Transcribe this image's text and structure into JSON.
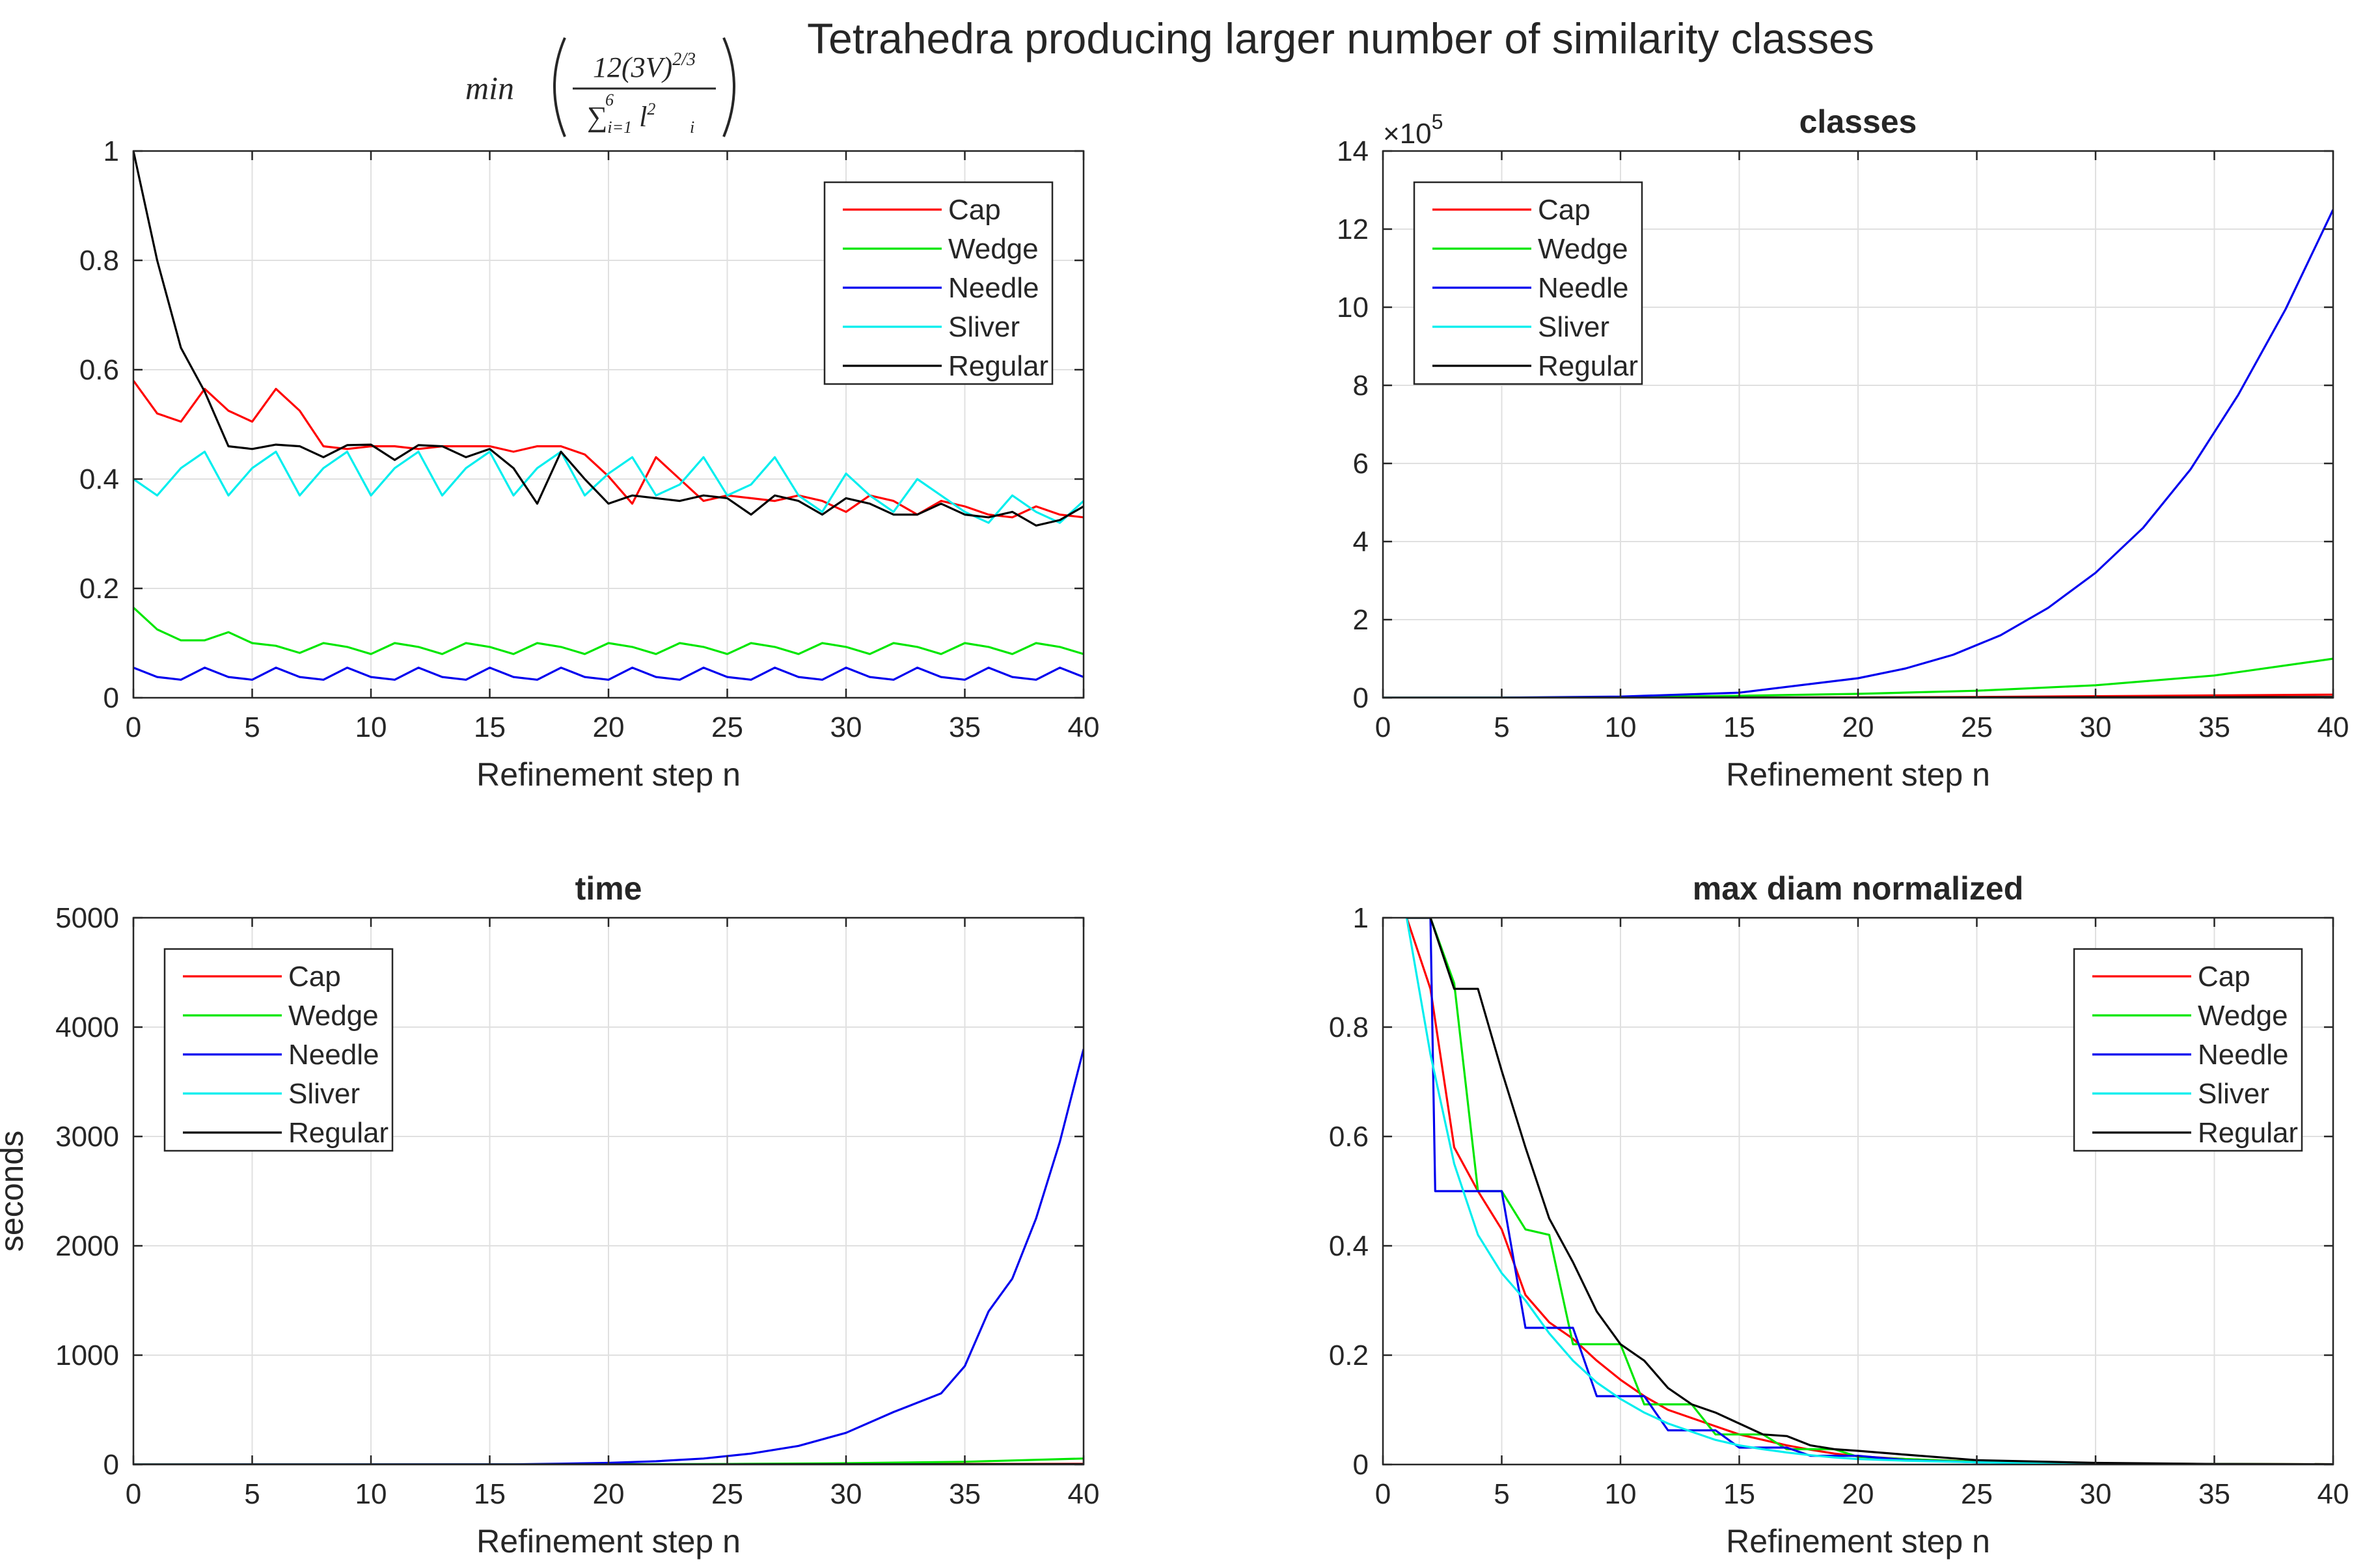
{
  "figure_title": "Tetrahedra producing larger number of similarity classes",
  "colors": {
    "Cap": "#ff0000",
    "Wedge": "#00e600",
    "Needle": "#0000ee",
    "Sliver": "#00eeee",
    "Regular": "#000000",
    "grid": "#e0e0e0",
    "axis": "#262626"
  },
  "chart_data": [
    {
      "id": "quality",
      "type": "line",
      "title": "",
      "formula": {
        "prefix": "min",
        "numerator": "12(3V)",
        "numerator_exp": "2/3",
        "sum": "∑",
        "sum_limits_sub": "i=1",
        "sum_limits_sup": "6",
        "term": "l",
        "term_sub": "i",
        "term_sup": "2"
      },
      "xlabel": "Refinement step n",
      "ylabel": "",
      "xlim": [
        0,
        40
      ],
      "ylim": [
        0,
        1
      ],
      "xticks": [
        0,
        5,
        10,
        15,
        20,
        25,
        30,
        35,
        40
      ],
      "yticks": [
        0,
        0.2,
        0.4,
        0.6,
        0.8,
        1
      ],
      "ytick_labels": [
        "0",
        "0.2",
        "0.4",
        "0.6",
        "0.8",
        "1"
      ],
      "grid": true,
      "legend_position": "top-right",
      "series": [
        {
          "name": "Cap",
          "x": [
            0,
            1,
            2,
            3,
            4,
            5,
            6,
            7,
            8,
            9,
            10,
            11,
            12,
            13,
            14,
            15,
            16,
            17,
            18,
            19,
            20,
            21,
            22,
            23,
            24,
            25,
            26,
            27,
            28,
            29,
            30,
            31,
            32,
            33,
            34,
            35,
            36,
            37,
            38,
            39,
            40
          ],
          "values": [
            0.58,
            0.52,
            0.505,
            0.565,
            0.525,
            0.505,
            0.565,
            0.525,
            0.46,
            0.455,
            0.46,
            0.46,
            0.455,
            0.46,
            0.46,
            0.46,
            0.45,
            0.46,
            0.46,
            0.445,
            0.405,
            0.355,
            0.44,
            0.4,
            0.36,
            0.37,
            0.365,
            0.36,
            0.37,
            0.36,
            0.34,
            0.37,
            0.36,
            0.335,
            0.36,
            0.35,
            0.335,
            0.33,
            0.35,
            0.335,
            0.33
          ]
        },
        {
          "name": "Wedge",
          "x": [
            0,
            1,
            2,
            3,
            4,
            5,
            6,
            7,
            8,
            9,
            10,
            11,
            12,
            13,
            14,
            15,
            16,
            17,
            18,
            19,
            20,
            21,
            22,
            23,
            24,
            25,
            26,
            27,
            28,
            29,
            30,
            31,
            32,
            33,
            34,
            35,
            36,
            37,
            38,
            39,
            40
          ],
          "values": [
            0.165,
            0.125,
            0.105,
            0.105,
            0.12,
            0.1,
            0.095,
            0.082,
            0.1,
            0.093,
            0.08,
            0.1,
            0.093,
            0.08,
            0.1,
            0.093,
            0.08,
            0.1,
            0.093,
            0.08,
            0.1,
            0.093,
            0.08,
            0.1,
            0.093,
            0.08,
            0.1,
            0.093,
            0.08,
            0.1,
            0.093,
            0.08,
            0.1,
            0.093,
            0.08,
            0.1,
            0.093,
            0.08,
            0.1,
            0.093,
            0.08
          ]
        },
        {
          "name": "Needle",
          "x": [
            0,
            1,
            2,
            3,
            4,
            5,
            6,
            7,
            8,
            9,
            10,
            11,
            12,
            13,
            14,
            15,
            16,
            17,
            18,
            19,
            20,
            21,
            22,
            23,
            24,
            25,
            26,
            27,
            28,
            29,
            30,
            31,
            32,
            33,
            34,
            35,
            36,
            37,
            38,
            39,
            40
          ],
          "values": [
            0.055,
            0.038,
            0.033,
            0.055,
            0.038,
            0.033,
            0.055,
            0.038,
            0.033,
            0.055,
            0.038,
            0.033,
            0.055,
            0.038,
            0.033,
            0.055,
            0.038,
            0.033,
            0.055,
            0.038,
            0.033,
            0.055,
            0.038,
            0.033,
            0.055,
            0.038,
            0.033,
            0.055,
            0.038,
            0.033,
            0.055,
            0.038,
            0.033,
            0.055,
            0.038,
            0.033,
            0.055,
            0.038,
            0.033,
            0.055,
            0.038
          ]
        },
        {
          "name": "Sliver",
          "x": [
            0,
            1,
            2,
            3,
            4,
            5,
            6,
            7,
            8,
            9,
            10,
            11,
            12,
            13,
            14,
            15,
            16,
            17,
            18,
            19,
            20,
            21,
            22,
            23,
            24,
            25,
            26,
            27,
            28,
            29,
            30,
            31,
            32,
            33,
            34,
            35,
            36,
            37,
            38,
            39,
            40
          ],
          "values": [
            0.4,
            0.37,
            0.42,
            0.45,
            0.37,
            0.42,
            0.45,
            0.37,
            0.42,
            0.45,
            0.37,
            0.42,
            0.45,
            0.37,
            0.42,
            0.45,
            0.37,
            0.42,
            0.45,
            0.37,
            0.41,
            0.44,
            0.37,
            0.39,
            0.44,
            0.37,
            0.39,
            0.44,
            0.37,
            0.34,
            0.41,
            0.37,
            0.34,
            0.4,
            0.37,
            0.34,
            0.32,
            0.37,
            0.34,
            0.32,
            0.36
          ]
        },
        {
          "name": "Regular",
          "x": [
            0,
            1,
            2,
            3,
            4,
            5,
            6,
            7,
            8,
            9,
            10,
            11,
            12,
            13,
            14,
            15,
            16,
            17,
            18,
            19,
            20,
            21,
            22,
            23,
            24,
            25,
            26,
            27,
            28,
            29,
            30,
            31,
            32,
            33,
            34,
            35,
            36,
            37,
            38,
            39,
            40
          ],
          "values": [
            1.0,
            0.8,
            0.64,
            0.56,
            0.46,
            0.455,
            0.463,
            0.46,
            0.44,
            0.462,
            0.463,
            0.435,
            0.462,
            0.46,
            0.44,
            0.455,
            0.42,
            0.355,
            0.45,
            0.4,
            0.355,
            0.37,
            0.365,
            0.36,
            0.37,
            0.365,
            0.335,
            0.37,
            0.36,
            0.335,
            0.365,
            0.355,
            0.335,
            0.335,
            0.355,
            0.335,
            0.33,
            0.34,
            0.315,
            0.325,
            0.35
          ]
        }
      ]
    },
    {
      "id": "classes",
      "type": "line",
      "title": "classes",
      "xlabel": "Refinement step n",
      "ylabel": "",
      "exponent_label": "×10",
      "exponent_power": "5",
      "xlim": [
        0,
        40
      ],
      "ylim": [
        0,
        14
      ],
      "xticks": [
        0,
        5,
        10,
        15,
        20,
        25,
        30,
        35,
        40
      ],
      "yticks": [
        0,
        2,
        4,
        6,
        8,
        10,
        12,
        14
      ],
      "ytick_labels": [
        "0",
        "2",
        "4",
        "6",
        "8",
        "10",
        "12",
        "14"
      ],
      "grid": true,
      "legend_position": "top-left",
      "series": [
        {
          "name": "Cap",
          "x": [
            0,
            5,
            10,
            15,
            20,
            25,
            30,
            35,
            40
          ],
          "values": [
            0,
            0,
            0.001,
            0.003,
            0.01,
            0.02,
            0.04,
            0.06,
            0.08
          ]
        },
        {
          "name": "Wedge",
          "x": [
            0,
            5,
            10,
            15,
            20,
            25,
            30,
            35,
            40
          ],
          "values": [
            0,
            0.003,
            0.015,
            0.05,
            0.1,
            0.18,
            0.32,
            0.57,
            1.0
          ]
        },
        {
          "name": "Needle",
          "x": [
            0,
            5,
            10,
            15,
            20,
            22,
            24,
            26,
            28,
            30,
            32,
            34,
            36,
            38,
            40
          ],
          "values": [
            0,
            0.003,
            0.03,
            0.13,
            0.5,
            0.75,
            1.1,
            1.6,
            2.3,
            3.2,
            4.35,
            5.85,
            7.75,
            9.95,
            12.5
          ]
        },
        {
          "name": "Sliver",
          "x": [
            0,
            5,
            10,
            15,
            20,
            25,
            30,
            35,
            40
          ],
          "values": [
            0,
            0,
            0,
            0,
            0.002,
            0.004,
            0.007,
            0.01,
            0.015
          ]
        },
        {
          "name": "Regular",
          "x": [
            0,
            5,
            10,
            15,
            20,
            25,
            30,
            35,
            40
          ],
          "values": [
            0,
            0,
            0,
            0.001,
            0.003,
            0.006,
            0.01,
            0.014,
            0.02
          ]
        }
      ]
    },
    {
      "id": "time",
      "type": "line",
      "title": "time",
      "xlabel": "Refinement step n",
      "ylabel": "seconds",
      "xlim": [
        0,
        40
      ],
      "ylim": [
        0,
        5000
      ],
      "xticks": [
        0,
        5,
        10,
        15,
        20,
        25,
        30,
        35,
        40
      ],
      "yticks": [
        0,
        1000,
        2000,
        3000,
        4000,
        5000
      ],
      "ytick_labels": [
        "0",
        "1000",
        "2000",
        "3000",
        "4000",
        "5000"
      ],
      "grid": true,
      "legend_position": "top-left",
      "series": [
        {
          "name": "Cap",
          "x": [
            0,
            10,
            20,
            30,
            40
          ],
          "values": [
            0,
            0,
            1,
            3,
            6
          ]
        },
        {
          "name": "Wedge",
          "x": [
            0,
            10,
            20,
            25,
            30,
            35,
            40
          ],
          "values": [
            0,
            0,
            2,
            5,
            12,
            25,
            55
          ]
        },
        {
          "name": "Needle",
          "x": [
            0,
            16,
            18,
            20,
            22,
            24,
            26,
            28,
            30,
            32,
            34,
            35,
            36,
            37,
            38,
            39,
            40
          ],
          "values": [
            0,
            2,
            8,
            15,
            30,
            55,
            100,
            170,
            290,
            480,
            650,
            900,
            1400,
            1700,
            2250,
            2950,
            3800
          ]
        },
        {
          "name": "Sliver",
          "x": [
            0,
            20,
            40
          ],
          "values": [
            0,
            0,
            2
          ]
        },
        {
          "name": "Regular",
          "x": [
            0,
            20,
            40
          ],
          "values": [
            0,
            0,
            3
          ]
        }
      ]
    },
    {
      "id": "maxdiam",
      "type": "line",
      "title": "max diam normalized",
      "xlabel": "Refinement step n",
      "ylabel": "",
      "xlim": [
        0,
        40
      ],
      "ylim": [
        0,
        1
      ],
      "xticks": [
        0,
        5,
        10,
        15,
        20,
        25,
        30,
        35,
        40
      ],
      "yticks": [
        0,
        0.2,
        0.4,
        0.6,
        0.8,
        1
      ],
      "ytick_labels": [
        "0",
        "0.2",
        "0.4",
        "0.6",
        "0.8",
        "1"
      ],
      "grid": true,
      "legend_position": "top-right",
      "series": [
        {
          "name": "Cap",
          "x": [
            1,
            2,
            3,
            4,
            5,
            6,
            7,
            8,
            9,
            10,
            11,
            12,
            13,
            14,
            15,
            16,
            17,
            18,
            19,
            20,
            22,
            25,
            30,
            35,
            40
          ],
          "values": [
            1.0,
            0.87,
            0.58,
            0.5,
            0.43,
            0.31,
            0.26,
            0.23,
            0.19,
            0.155,
            0.125,
            0.1,
            0.085,
            0.07,
            0.055,
            0.045,
            0.035,
            0.027,
            0.02,
            0.015,
            0.01,
            0.005,
            0.002,
            0.001,
            0.0005
          ]
        },
        {
          "name": "Wedge",
          "x": [
            1,
            2,
            3,
            4,
            5,
            6,
            7,
            8,
            9,
            10,
            11,
            12,
            13,
            14,
            15,
            16,
            17,
            18,
            19,
            20,
            22,
            25,
            30,
            35,
            40
          ],
          "values": [
            1.0,
            1.0,
            0.88,
            0.5,
            0.5,
            0.43,
            0.42,
            0.22,
            0.22,
            0.22,
            0.11,
            0.11,
            0.11,
            0.055,
            0.055,
            0.055,
            0.028,
            0.028,
            0.028,
            0.014,
            0.01,
            0.005,
            0.002,
            0.001,
            0.0005
          ]
        },
        {
          "name": "Needle",
          "x": [
            1,
            2,
            2.2,
            3,
            4,
            5,
            6,
            7,
            8,
            9,
            10,
            11,
            12,
            13,
            14,
            15,
            16,
            17,
            18,
            19,
            20,
            22,
            25,
            30,
            35,
            40
          ],
          "values": [
            1.0,
            1.0,
            0.5,
            0.5,
            0.5,
            0.5,
            0.25,
            0.25,
            0.25,
            0.125,
            0.125,
            0.125,
            0.0625,
            0.0625,
            0.0625,
            0.031,
            0.031,
            0.031,
            0.016,
            0.016,
            0.016,
            0.008,
            0.004,
            0.001,
            0.0005,
            0.0003
          ]
        },
        {
          "name": "Sliver",
          "x": [
            1,
            2,
            3,
            4,
            5,
            6,
            7,
            8,
            9,
            10,
            11,
            12,
            13,
            14,
            15,
            16,
            17,
            18,
            19,
            20,
            22,
            25,
            30,
            35,
            40
          ],
          "values": [
            1.0,
            0.75,
            0.55,
            0.42,
            0.35,
            0.3,
            0.24,
            0.19,
            0.15,
            0.12,
            0.095,
            0.075,
            0.06,
            0.045,
            0.035,
            0.028,
            0.022,
            0.017,
            0.013,
            0.01,
            0.007,
            0.004,
            0.001,
            0.0005,
            0.0003
          ]
        },
        {
          "name": "Regular",
          "x": [
            1,
            2,
            3,
            4,
            5,
            6,
            7,
            8,
            9,
            10,
            11,
            12,
            13,
            14,
            15,
            16,
            17,
            18,
            19,
            20,
            22,
            25,
            30,
            35,
            40
          ],
          "values": [
            1.0,
            1.0,
            0.87,
            0.87,
            0.72,
            0.58,
            0.45,
            0.37,
            0.28,
            0.22,
            0.19,
            0.14,
            0.11,
            0.095,
            0.075,
            0.055,
            0.052,
            0.035,
            0.028,
            0.025,
            0.018,
            0.008,
            0.003,
            0.001,
            0.0005
          ]
        }
      ]
    }
  ]
}
